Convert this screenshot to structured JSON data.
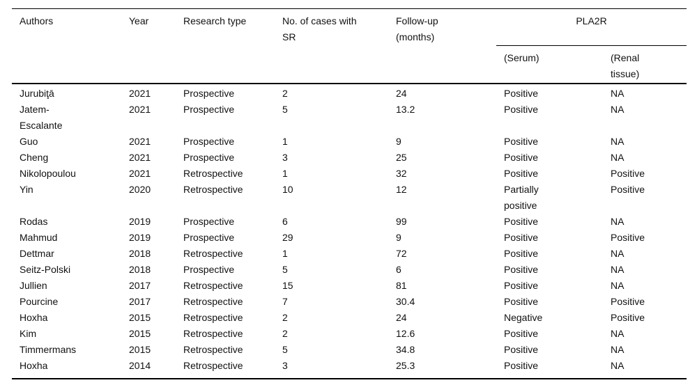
{
  "page": {
    "background": "#ffffff",
    "text_color": "#111111",
    "rule_color": "#000000"
  },
  "table": {
    "group_header": {
      "label": "PLA2R"
    },
    "columns": [
      {
        "key": "authors",
        "label": "Authors"
      },
      {
        "key": "year",
        "label": "Year"
      },
      {
        "key": "research-type",
        "label": "Research type"
      },
      {
        "key": "cases-with-sr",
        "label": "No. of cases with\nSR"
      },
      {
        "key": "follow-up",
        "label": "Follow-up\n(months)"
      },
      {
        "key": "pla2r-serum",
        "label": "(Serum)"
      },
      {
        "key": "pla2r-renal",
        "label": "(Renal\ntissue)"
      }
    ],
    "rows": [
      [
        "Jurubiţā",
        "2021",
        "Prospective",
        "2",
        "24",
        "Positive",
        "NA"
      ],
      [
        "Jatem-\nEscalante",
        "2021",
        "Prospective",
        "5",
        "13.2",
        "Positive",
        "NA"
      ],
      [
        "Guo",
        "2021",
        "Prospective",
        "1",
        "9",
        "Positive",
        "NA"
      ],
      [
        "Cheng",
        "2021",
        "Prospective",
        "3",
        "25",
        "Positive",
        "NA"
      ],
      [
        "Nikolopoulou",
        "2021",
        "Retrospective",
        "1",
        "32",
        "Positive",
        "Positive"
      ],
      [
        "Yin",
        "2020",
        "Retrospective",
        "10",
        "12",
        "Partially\npositive",
        "Positive"
      ],
      [
        "Rodas",
        "2019",
        "Prospective",
        "6",
        "99",
        "Positive",
        "NA"
      ],
      [
        "Mahmud",
        "2019",
        "Prospective",
        "29",
        "9",
        "Positive",
        "Positive"
      ],
      [
        "Dettmar",
        "2018",
        "Retrospective",
        "1",
        "72",
        "Positive",
        "NA"
      ],
      [
        "Seitz-Polski",
        "2018",
        "Prospective",
        "5",
        "6",
        "Positive",
        "NA"
      ],
      [
        "Jullien",
        "2017",
        "Retrospective",
        "15",
        "81",
        "Positive",
        "NA"
      ],
      [
        "Pourcine",
        "2017",
        "Retrospective",
        "7",
        "30.4",
        "Positive",
        "Positive"
      ],
      [
        "Hoxha",
        "2015",
        "Retrospective",
        "2",
        "24",
        "Negative",
        "Positive"
      ],
      [
        "Kim",
        "2015",
        "Retrospective",
        "2",
        "12.6",
        "Positive",
        "NA"
      ],
      [
        "Timmermans",
        "2015",
        "Retrospective",
        "5",
        "34.8",
        "Positive",
        "NA"
      ],
      [
        "Hoxha",
        "2014",
        "Retrospective",
        "3",
        "25.3",
        "Positive",
        "NA"
      ]
    ]
  }
}
